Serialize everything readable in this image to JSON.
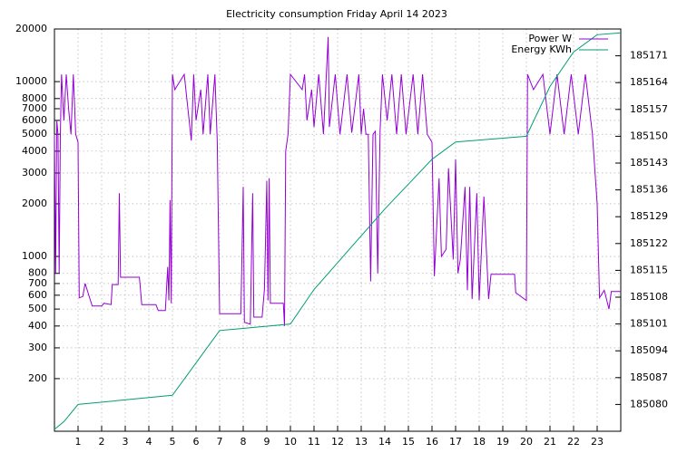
{
  "chart_data": {
    "type": "line",
    "title": "Electricity consumption Friday April 14 2023",
    "log_y": true,
    "grid": true,
    "legend": "top-right",
    "xlim": [
      0,
      24
    ],
    "xticks": [
      1,
      2,
      3,
      4,
      5,
      6,
      7,
      8,
      9,
      10,
      11,
      12,
      13,
      14,
      15,
      16,
      17,
      18,
      19,
      20,
      21,
      22,
      23
    ],
    "ylim": [
      100,
      20000
    ],
    "yticks": [
      200,
      300,
      400,
      500,
      600,
      700,
      800,
      1000,
      2000,
      3000,
      4000,
      5000,
      6000,
      7000,
      8000,
      10000,
      20000
    ],
    "y2lim": [
      185073,
      185178
    ],
    "y2ticks": [
      185080,
      185087,
      185094,
      185101,
      185108,
      185115,
      185122,
      185129,
      185136,
      185143,
      185150,
      185157,
      185164,
      185171
    ],
    "series": [
      {
        "name": "Power W",
        "color": "#9400d3",
        "x": [
          0,
          0.05,
          0.1,
          0.15,
          0.2,
          0.25,
          0.3,
          0.4,
          0.5,
          0.6,
          0.7,
          0.8,
          0.9,
          1.0,
          1.05,
          1.2,
          1.3,
          1.6,
          2.0,
          2.1,
          2.4,
          2.45,
          2.7,
          2.75,
          2.8,
          3.0,
          3.6,
          3.7,
          4.3,
          4.4,
          4.7,
          4.8,
          4.85,
          4.9,
          4.95,
          5.0,
          5.1,
          5.5,
          5.8,
          5.9,
          6.0,
          6.2,
          6.3,
          6.5,
          6.6,
          6.8,
          6.9,
          7.0,
          7.5,
          7.9,
          8.0,
          8.05,
          8.3,
          8.4,
          8.45,
          8.8,
          8.9,
          9.0,
          9.05,
          9.1,
          9.15,
          9.7,
          9.75,
          9.8,
          9.9,
          10.0,
          10.5,
          10.6,
          10.7,
          10.9,
          11.0,
          11.2,
          11.4,
          11.6,
          11.65,
          11.9,
          12.1,
          12.4,
          12.6,
          12.9,
          13.0,
          13.1,
          13.2,
          13.3,
          13.4,
          13.5,
          13.6,
          13.7,
          13.8,
          13.9,
          14.1,
          14.3,
          14.5,
          14.7,
          14.9,
          15.2,
          15.4,
          15.6,
          15.8,
          16.0,
          16.1,
          16.3,
          16.4,
          16.6,
          16.7,
          16.9,
          17.0,
          17.1,
          17.2,
          17.4,
          17.5,
          17.6,
          17.7,
          17.9,
          18.0,
          18.2,
          18.4,
          18.5,
          19.5,
          19.55,
          20.0,
          20.05,
          20.3,
          20.7,
          21.0,
          21.3,
          21.6,
          21.9,
          22.2,
          22.5,
          22.8,
          23.0,
          23.1,
          23.3,
          23.5,
          23.6,
          24.0
        ],
        "values": [
          5000,
          800,
          6000,
          5000,
          800,
          5000,
          11000,
          6000,
          11000,
          7000,
          5000,
          11000,
          5000,
          4500,
          580,
          590,
          700,
          520,
          520,
          540,
          530,
          690,
          690,
          2300,
          760,
          760,
          760,
          530,
          530,
          490,
          490,
          870,
          560,
          2100,
          540,
          11000,
          9000,
          11000,
          4600,
          11000,
          6000,
          9000,
          5000,
          11000,
          5000,
          11000,
          4500,
          470,
          470,
          470,
          2500,
          420,
          410,
          2300,
          450,
          450,
          650,
          2700,
          560,
          2800,
          540,
          540,
          400,
          4000,
          5000,
          11000,
          9000,
          11000,
          6000,
          9000,
          5500,
          11000,
          5000,
          18000,
          5500,
          11000,
          5000,
          11000,
          5100,
          11000,
          5000,
          7000,
          5000,
          5000,
          720,
          5000,
          5200,
          800,
          5200,
          11000,
          6000,
          11000,
          5000,
          11000,
          5000,
          11000,
          5000,
          11000,
          5000,
          4500,
          770,
          2800,
          1000,
          1100,
          3200,
          960,
          3600,
          800,
          960,
          2500,
          640,
          2500,
          570,
          2300,
          560,
          2200,
          570,
          790,
          790,
          620,
          560,
          11000,
          9000,
          11000,
          5000,
          11000,
          5000,
          11000,
          5000,
          11000,
          5000,
          2000,
          580,
          640,
          500,
          630,
          630
        ]
      },
      {
        "name": "Energy KWh",
        "color": "#009e73",
        "axis": "y2",
        "x": [
          0,
          0.4,
          1,
          5,
          7,
          10,
          11,
          12,
          13,
          14,
          15,
          16,
          17,
          18,
          20,
          21,
          22,
          23,
          24
        ],
        "values": [
          185073.5,
          185075.5,
          185080,
          185082.4,
          185099.3,
          185101,
          185110,
          185117,
          185124,
          185131,
          185137.5,
          185144,
          185148.5,
          185149,
          185150,
          185163,
          185172,
          185176.5,
          185177
        ]
      }
    ]
  }
}
